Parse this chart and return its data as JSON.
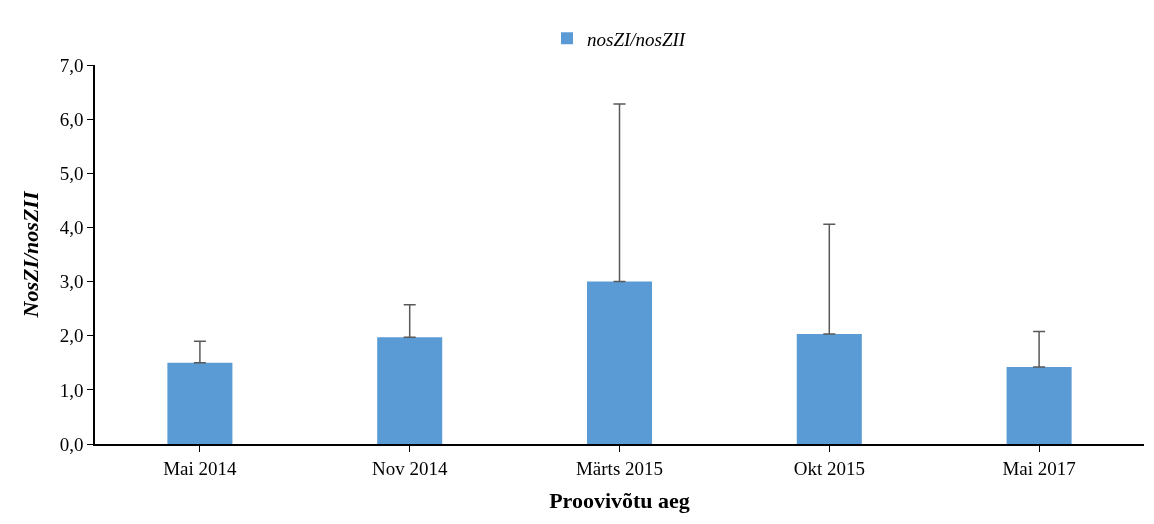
{
  "chart_data": {
    "type": "bar",
    "xlabel": "Proovivõtu aeg",
    "ylabel": "NosZI/nosZII",
    "categories": [
      "Mai 2014",
      "Nov 2014",
      "Märts 2015",
      "Okt 2015",
      "Mai 2017"
    ],
    "series": [
      {
        "name": "nosZI/nosZII",
        "color": "#5b9bd5",
        "values": [
          1.5,
          1.97,
          3.0,
          2.03,
          1.42
        ],
        "errors": [
          [
            1.5,
            1.9
          ],
          [
            1.97,
            2.57
          ],
          [
            3.0,
            6.28
          ],
          [
            2.03,
            4.06
          ],
          [
            1.42,
            2.08
          ]
        ]
      }
    ],
    "ylim": [
      0,
      7
    ],
    "yticks": [
      {
        "value": 0,
        "label": "0,0"
      },
      {
        "value": 1,
        "label": "1,0"
      },
      {
        "value": 2,
        "label": "2,0"
      },
      {
        "value": 3,
        "label": "3,0"
      },
      {
        "value": 4,
        "label": "4,0"
      },
      {
        "value": 5,
        "label": "5,0"
      },
      {
        "value": 6,
        "label": "6,0"
      },
      {
        "value": 7,
        "label": "7,0"
      }
    ],
    "grid": false,
    "legend": "top"
  }
}
